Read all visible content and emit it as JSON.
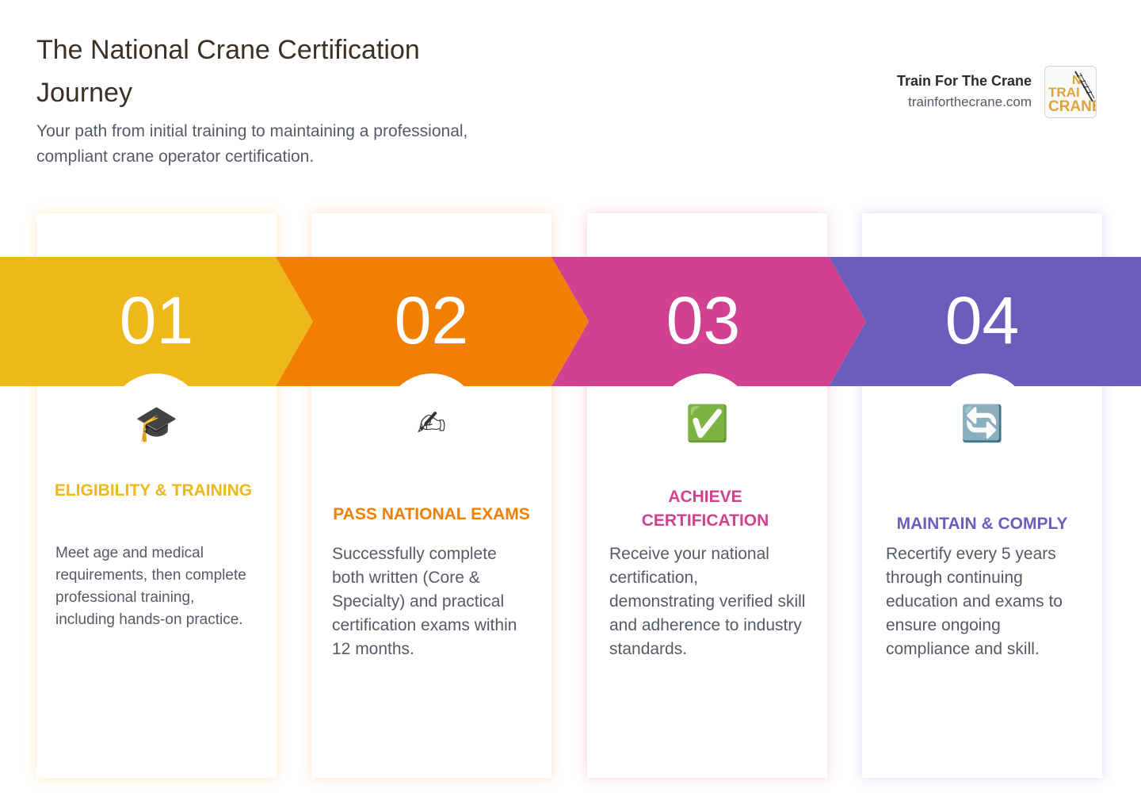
{
  "header": {
    "title": "The National Crane Certification Journey",
    "subtitle": "Your path from initial training to maintaining a professional, compliant crane operator certification."
  },
  "brand": {
    "name": "Train For The Crane",
    "url": "trainforthecrane.com",
    "logo_text": "TRAIN CRANE"
  },
  "steps": [
    {
      "number": "01",
      "icon": "graduation-cap-icon",
      "glyph": "🎓",
      "title": "Eligibility & Training",
      "description": "Meet age and medical requirements, then complete professional training, including hands-on practice.",
      "color": "#ECB81A"
    },
    {
      "number": "02",
      "icon": "writing-hand-icon",
      "glyph": "✍",
      "title": "Pass National Exams",
      "description": "Successfully complete both written (Core & Specialty) and practical certification exams within 12 months.",
      "color": "#F17F03"
    },
    {
      "number": "03",
      "icon": "check-mark-icon",
      "glyph": "✅",
      "title": "Achieve Certification",
      "description": "Receive your national certification, demonstrating verified skill and adherence to industry standards.",
      "color": "#D24090"
    },
    {
      "number": "04",
      "icon": "refresh-icon",
      "glyph": "🔄",
      "title": "Maintain & Comply",
      "description": "Recertify every 5 years through continuing education and exams to ensure ongoing compliance and skill.",
      "color": "#6A5DBB"
    }
  ]
}
